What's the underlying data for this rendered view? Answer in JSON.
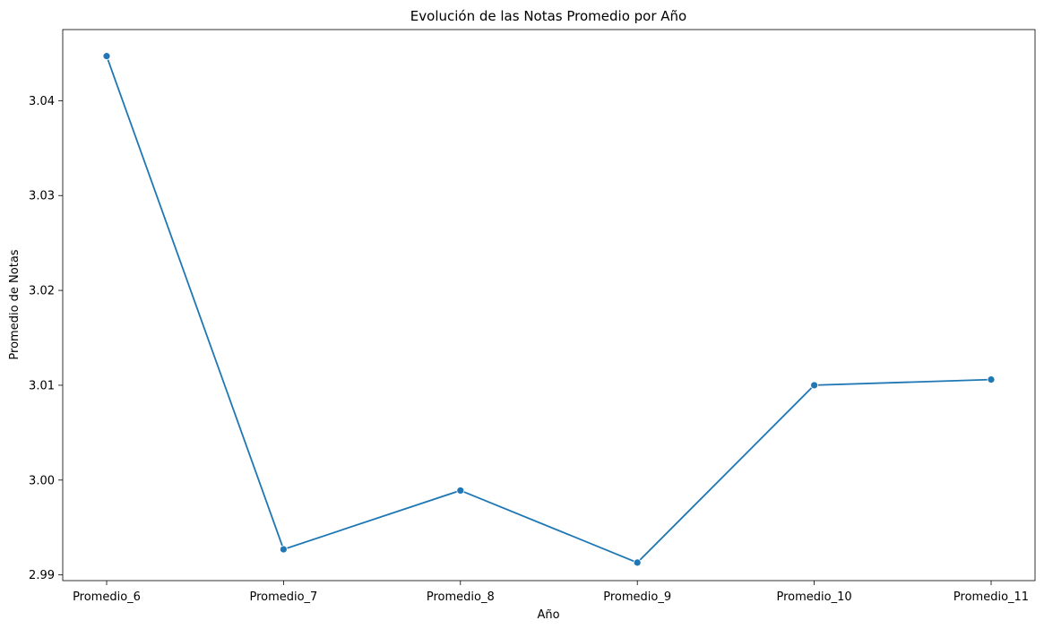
{
  "chart_data": {
    "type": "line",
    "title": "Evolución de las Notas Promedio por Año",
    "xlabel": "Año",
    "ylabel": "Promedio de Notas",
    "categories": [
      "Promedio_6",
      "Promedio_7",
      "Promedio_8",
      "Promedio_9",
      "Promedio_10",
      "Promedio_11"
    ],
    "series": [
      {
        "values": [
          3.0447,
          2.9927,
          2.9989,
          2.9913,
          3.01,
          3.0106
        ]
      }
    ],
    "yticks": [
      "2.99",
      "3.00",
      "3.01",
      "3.02",
      "3.03",
      "3.04"
    ],
    "ylim": [
      2.9894,
      3.0475
    ],
    "grid": false,
    "line_color": "#1f77b4"
  }
}
